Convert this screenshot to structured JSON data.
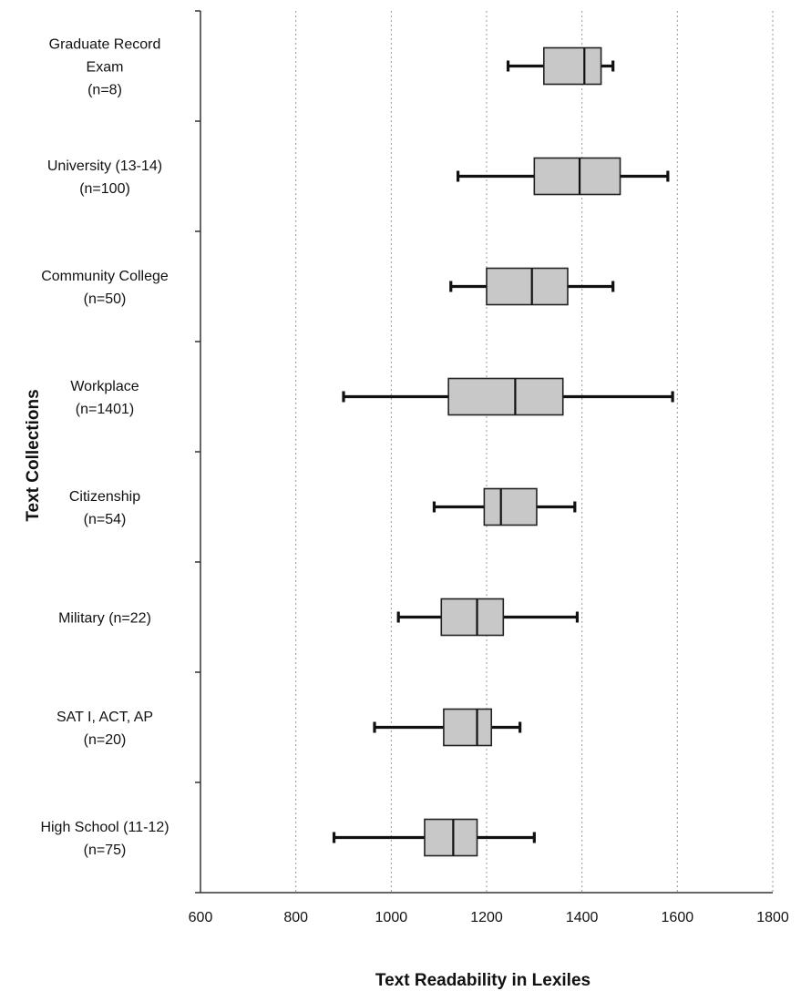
{
  "chart_data": {
    "type": "boxplot",
    "orientation": "horizontal",
    "xlabel": "Text Readability in Lexiles",
    "ylabel": "Text Collections",
    "xlim": [
      600,
      1800
    ],
    "xticks": [
      600,
      800,
      1000,
      1200,
      1400,
      1600,
      1800
    ],
    "grid": "vertical dashed at 800, 1000, 1200, 1400, 1600",
    "categories": [
      {
        "name": "Graduate Record Exam",
        "label_lines": [
          "Graduate Record",
          "Exam",
          "(n=8)"
        ],
        "min": 1245,
        "q1": 1320,
        "median": 1405,
        "q3": 1440,
        "max": 1465
      },
      {
        "name": "University (13-14)",
        "label_lines": [
          "University (13-14)",
          "(n=100)"
        ],
        "min": 1140,
        "q1": 1300,
        "median": 1395,
        "q3": 1480,
        "max": 1580
      },
      {
        "name": "Community College",
        "label_lines": [
          "Community College",
          "(n=50)"
        ],
        "min": 1125,
        "q1": 1200,
        "median": 1295,
        "q3": 1370,
        "max": 1465
      },
      {
        "name": "Workplace",
        "label_lines": [
          "Workplace",
          "(n=1401)"
        ],
        "min": 900,
        "q1": 1120,
        "median": 1260,
        "q3": 1360,
        "max": 1590
      },
      {
        "name": "Citizenship",
        "label_lines": [
          "Citizenship",
          "(n=54)"
        ],
        "min": 1090,
        "q1": 1195,
        "median": 1230,
        "q3": 1305,
        "max": 1385
      },
      {
        "name": "Military",
        "label_lines": [
          "Military (n=22)"
        ],
        "min": 1015,
        "q1": 1105,
        "median": 1180,
        "q3": 1235,
        "max": 1390
      },
      {
        "name": "SAT I, ACT, AP",
        "label_lines": [
          "SAT I, ACT, AP",
          "(n=20)"
        ],
        "min": 965,
        "q1": 1110,
        "median": 1180,
        "q3": 1210,
        "max": 1270
      },
      {
        "name": "High School (11-12)",
        "label_lines": [
          "High School (11-12)",
          "(n=75)"
        ],
        "min": 880,
        "q1": 1070,
        "median": 1130,
        "q3": 1180,
        "max": 1300
      }
    ]
  }
}
